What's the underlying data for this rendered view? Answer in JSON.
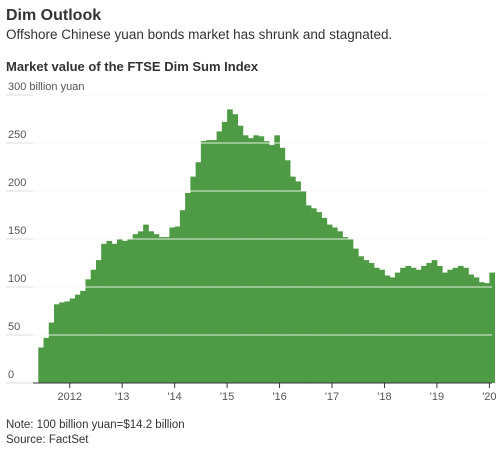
{
  "chart_data": {
    "type": "step-area",
    "title": "Dim Outlook",
    "subtitle": "Offshore Chinese yuan bonds market has shrunk and stagnated.",
    "chart_title": "Market value of the FTSE Dim Sum Index",
    "note": "Note: 100 billion yuan=$14.2 billion",
    "source": "Source: FactSet",
    "color": "#4f9b45",
    "grid": true,
    "x": [
      2011.4,
      2011.5,
      2011.6,
      2011.7,
      2011.8,
      2011.9,
      2012.0,
      2012.1,
      2012.2,
      2012.3,
      2012.4,
      2012.5,
      2012.6,
      2012.7,
      2012.8,
      2012.9,
      2013.0,
      2013.1,
      2013.2,
      2013.3,
      2013.4,
      2013.5,
      2013.6,
      2013.7,
      2013.8,
      2013.9,
      2014.0,
      2014.1,
      2014.2,
      2014.3,
      2014.4,
      2014.5,
      2014.6,
      2014.7,
      2014.8,
      2014.9,
      2015.0,
      2015.1,
      2015.2,
      2015.3,
      2015.4,
      2015.5,
      2015.6,
      2015.7,
      2015.8,
      2015.9,
      2016.0,
      2016.1,
      2016.2,
      2016.3,
      2016.4,
      2016.5,
      2016.6,
      2016.7,
      2016.8,
      2016.9,
      2017.0,
      2017.1,
      2017.2,
      2017.3,
      2017.4,
      2017.5,
      2017.6,
      2017.7,
      2017.8,
      2017.9,
      2018.0,
      2018.1,
      2018.2,
      2018.3,
      2018.4,
      2018.5,
      2018.6,
      2018.7,
      2018.8,
      2018.9,
      2019.0,
      2019.1,
      2019.2,
      2019.3,
      2019.4,
      2019.5,
      2019.6,
      2019.7,
      2019.8,
      2019.9,
      2020.0
    ],
    "values": [
      37,
      47,
      63,
      82,
      84,
      85,
      88,
      92,
      96,
      108,
      118,
      128,
      145,
      148,
      145,
      150,
      148,
      150,
      155,
      158,
      165,
      158,
      155,
      152,
      152,
      162,
      163,
      180,
      198,
      215,
      230,
      252,
      253,
      253,
      262,
      272,
      285,
      280,
      268,
      258,
      255,
      258,
      257,
      252,
      248,
      258,
      245,
      232,
      215,
      210,
      200,
      185,
      182,
      178,
      172,
      165,
      162,
      158,
      152,
      150,
      140,
      132,
      128,
      125,
      120,
      118,
      112,
      110,
      115,
      120,
      122,
      120,
      118,
      122,
      125,
      128,
      122,
      115,
      118,
      120,
      122,
      120,
      113,
      110,
      105,
      104,
      115
    ],
    "xlim": [
      2011.3,
      2020.05
    ],
    "xticks": [
      {
        "value": 2012,
        "label": "2012"
      },
      {
        "value": 2013,
        "label": "'13"
      },
      {
        "value": 2014,
        "label": "'14"
      },
      {
        "value": 2015,
        "label": "'15"
      },
      {
        "value": 2016,
        "label": "'16"
      },
      {
        "value": 2017,
        "label": "'17"
      },
      {
        "value": 2018,
        "label": "'18"
      },
      {
        "value": 2019,
        "label": "'19"
      },
      {
        "value": 2020,
        "label": "'20"
      }
    ],
    "ylim": [
      0,
      300
    ],
    "yticks": [
      0,
      50,
      100,
      150,
      200,
      250,
      {
        "value": 300,
        "label": "300 billion yuan"
      }
    ]
  }
}
